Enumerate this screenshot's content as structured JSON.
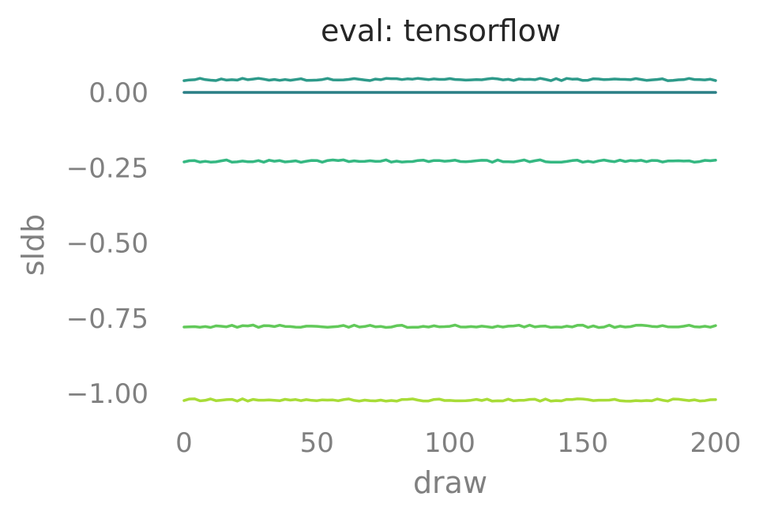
{
  "chart_data": {
    "type": "line",
    "title": "eval: tensorflow",
    "xlabel": "draw",
    "ylabel": "sldb",
    "xlim": [
      0,
      200
    ],
    "ylim": [
      -1.05,
      0.07
    ],
    "xticks": [
      0,
      50,
      100,
      150,
      200
    ],
    "xtick_labels": [
      "0",
      "50",
      "100",
      "150",
      "200"
    ],
    "yticks": [
      0.0,
      -0.25,
      -0.5,
      -0.75,
      -1.0
    ],
    "ytick_labels": [
      "0.00",
      "−0.25",
      "−0.50",
      "−0.75",
      "−1.00"
    ],
    "grid": false,
    "legend": "none",
    "series": [
      {
        "color": "#2e9a8a",
        "level": 0.043,
        "jitter": 0.004
      },
      {
        "color": "#2a7f86",
        "level": 0.0,
        "jitter": 0.0
      },
      {
        "color": "#35b882",
        "level": -0.228,
        "jitter": 0.004
      },
      {
        "color": "#62c95a",
        "level": -0.777,
        "jitter": 0.004
      },
      {
        "color": "#a8dc38",
        "level": -1.022,
        "jitter": 0.004
      }
    ]
  }
}
